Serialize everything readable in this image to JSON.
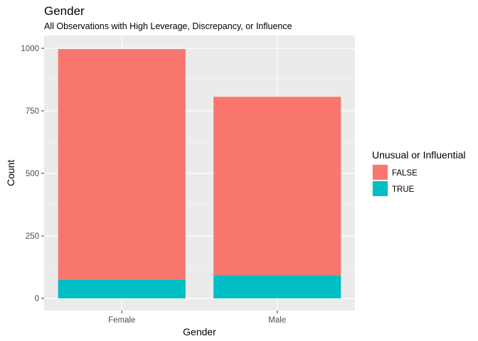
{
  "chart_data": {
    "type": "bar",
    "stacked": true,
    "title": "Gender",
    "subtitle": "All Observations with High Leverage, Discrepancy, or Influence",
    "xlabel": "Gender",
    "ylabel": "Count",
    "categories": [
      "Female",
      "Male"
    ],
    "ylim": [
      0,
      1000
    ],
    "yticks": [
      0,
      250,
      500,
      750,
      1000
    ],
    "series": [
      {
        "name": "FALSE",
        "color": "#F8766D",
        "values": [
          922,
          713
        ]
      },
      {
        "name": "TRUE",
        "color": "#00BFC4",
        "values": [
          75,
          93
        ]
      }
    ],
    "legend": {
      "title": "Unusual or Influential",
      "position": "right"
    },
    "grid": true,
    "panel_background": "#EBEBEB",
    "gridline_color": "#FFFFFF"
  }
}
